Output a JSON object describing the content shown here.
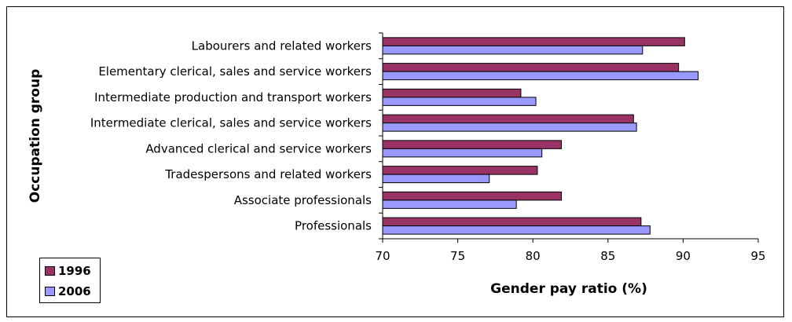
{
  "chart_data": {
    "type": "bar",
    "orientation": "horizontal",
    "title": "",
    "xlabel": "Gender pay ratio (%)",
    "ylabel": "Occupation group",
    "xlim": [
      70,
      95
    ],
    "xticks": [
      70,
      75,
      80,
      85,
      90,
      95
    ],
    "grid": false,
    "legend_position": "bottom-left",
    "categories": [
      "Labourers and related workers",
      "Elementary clerical, sales and service workers",
      "Intermediate production and transport workers",
      "Intermediate clerical, sales and service workers",
      "Advanced clerical and service workers",
      "Tradespersons and related workers",
      "Associate professionals",
      "Professionals"
    ],
    "series": [
      {
        "name": "1996",
        "color": "#993366",
        "values": [
          90.1,
          89.7,
          79.2,
          86.7,
          81.9,
          80.3,
          81.9,
          87.2
        ]
      },
      {
        "name": "2006",
        "color": "#9999FF",
        "values": [
          87.3,
          91.0,
          80.2,
          86.9,
          80.6,
          77.1,
          78.9,
          87.8
        ]
      }
    ]
  }
}
